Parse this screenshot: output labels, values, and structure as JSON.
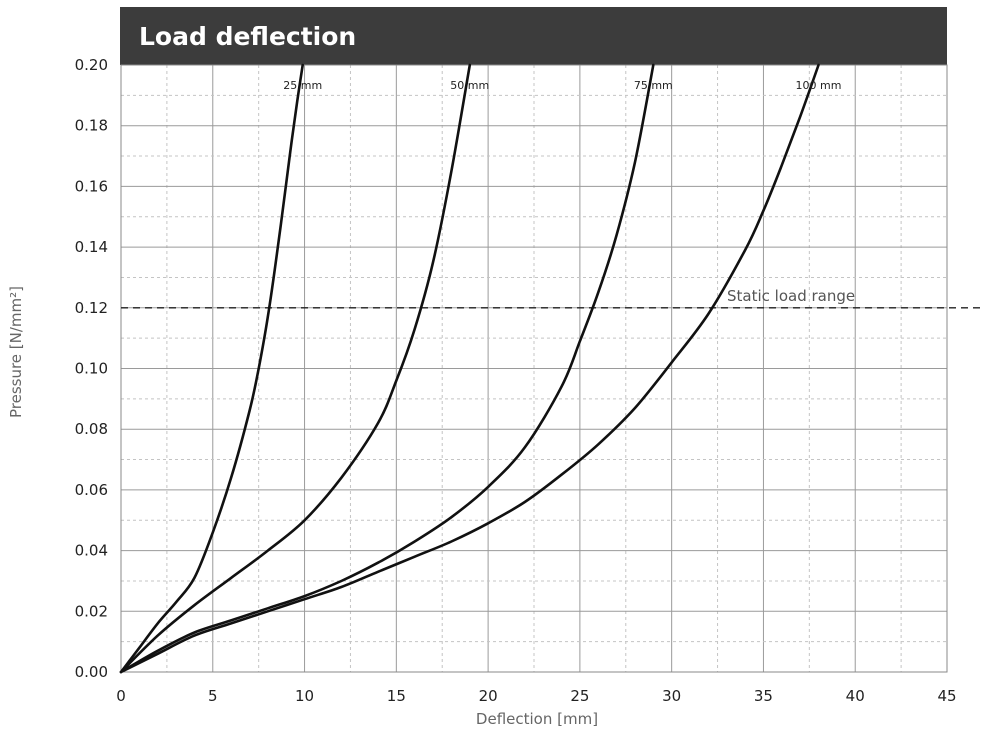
{
  "chart_data": {
    "type": "line",
    "title": "Load deflection",
    "xlabel": "Deflection [mm]",
    "ylabel": "Pressure [N/mm²]",
    "xlim": [
      0,
      45
    ],
    "ylim": [
      0,
      0.2
    ],
    "x_ticks": [
      "0",
      "5",
      "10",
      "15",
      "20",
      "25",
      "30",
      "35",
      "40",
      "45"
    ],
    "y_ticks": [
      "0.00",
      "0.02",
      "0.04",
      "0.06",
      "0.08",
      "0.10",
      "0.12",
      "0.14",
      "0.16",
      "0.18",
      "0.20"
    ],
    "grid": true,
    "reference_line": {
      "y": 0.12,
      "label": "Static load range"
    },
    "series": [
      {
        "name": "25 mm",
        "x": [
          0,
          1,
          2,
          3,
          4,
          5,
          6,
          7,
          7.5,
          8,
          8.5,
          9,
          9.3,
          9.6,
          9.9
        ],
        "y": [
          0,
          0.008,
          0.016,
          0.023,
          0.031,
          0.046,
          0.064,
          0.086,
          0.1,
          0.117,
          0.138,
          0.161,
          0.175,
          0.188,
          0.2
        ]
      },
      {
        "name": "50 mm",
        "x": [
          0,
          2,
          4,
          6,
          8,
          10,
          12,
          14,
          15,
          16,
          17,
          18,
          19
        ],
        "y": [
          0,
          0.012,
          0.022,
          0.031,
          0.04,
          0.05,
          0.064,
          0.082,
          0.096,
          0.113,
          0.135,
          0.165,
          0.2
        ]
      },
      {
        "name": "75 mm",
        "x": [
          0,
          2,
          4,
          6,
          8,
          10,
          12,
          14,
          16,
          18,
          20,
          22,
          24,
          25,
          26,
          27,
          28,
          29
        ],
        "y": [
          0,
          0.007,
          0.013,
          0.017,
          0.021,
          0.025,
          0.03,
          0.036,
          0.043,
          0.051,
          0.061,
          0.074,
          0.094,
          0.109,
          0.125,
          0.144,
          0.168,
          0.2
        ]
      },
      {
        "name": "100 mm",
        "x": [
          0,
          2,
          4,
          6,
          8,
          10,
          12,
          14,
          16,
          18,
          20,
          22,
          24,
          26,
          28,
          30,
          32,
          34,
          35,
          36,
          37,
          38
        ],
        "y": [
          0,
          0.006,
          0.012,
          0.016,
          0.02,
          0.024,
          0.028,
          0.033,
          0.038,
          0.043,
          0.049,
          0.056,
          0.065,
          0.075,
          0.087,
          0.102,
          0.118,
          0.139,
          0.152,
          0.167,
          0.183,
          0.2
        ]
      }
    ]
  }
}
